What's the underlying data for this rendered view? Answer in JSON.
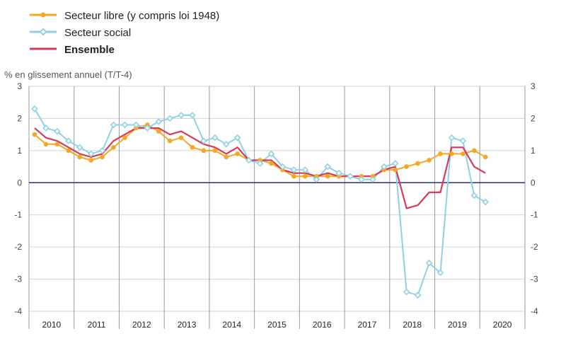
{
  "chart_data": {
    "type": "line",
    "ylabel": "% en glissement annuel (T/T-4)",
    "ylim": [
      -4,
      3
    ],
    "yticks": [
      3,
      2,
      1,
      0,
      -1,
      -2,
      -3,
      -4
    ],
    "years": [
      "2010",
      "2011",
      "2012",
      "2013",
      "2014",
      "2015",
      "2016",
      "2017",
      "2018",
      "2019",
      "2020"
    ],
    "x": [
      "2010T1",
      "2010T2",
      "2010T3",
      "2010T4",
      "2011T1",
      "2011T2",
      "2011T3",
      "2011T4",
      "2012T1",
      "2012T2",
      "2012T3",
      "2012T4",
      "2013T1",
      "2013T2",
      "2013T3",
      "2013T4",
      "2014T1",
      "2014T2",
      "2014T3",
      "2014T4",
      "2015T1",
      "2015T2",
      "2015T3",
      "2015T4",
      "2016T1",
      "2016T2",
      "2016T3",
      "2016T4",
      "2017T1",
      "2017T2",
      "2017T3",
      "2017T4",
      "2018T1",
      "2018T2",
      "2018T3",
      "2018T4",
      "2019T1",
      "2019T2",
      "2019T3",
      "2019T4",
      "2020T1"
    ],
    "grid": true,
    "legend_position": "top-left",
    "series": [
      {
        "name": "Secteur libre (y compris loi 1948)",
        "color": "#f5a623",
        "marker": "circle",
        "values": [
          1.5,
          1.2,
          1.2,
          1.0,
          0.8,
          0.7,
          0.8,
          1.1,
          1.4,
          1.7,
          1.8,
          1.6,
          1.3,
          1.4,
          1.1,
          1.0,
          1.0,
          0.8,
          0.9,
          0.7,
          0.7,
          0.6,
          0.4,
          0.2,
          0.2,
          0.2,
          0.2,
          0.2,
          0.2,
          0.2,
          0.2,
          0.4,
          0.4,
          0.5,
          0.6,
          0.7,
          0.9,
          0.9,
          0.9,
          1.0,
          0.8
        ]
      },
      {
        "name": "Secteur social",
        "color": "#8fd1e4",
        "marker": "diamond",
        "values": [
          2.3,
          1.7,
          1.6,
          1.3,
          1.1,
          0.9,
          1.0,
          1.8,
          1.8,
          1.8,
          1.7,
          1.9,
          2.0,
          2.1,
          2.1,
          1.3,
          1.4,
          1.2,
          1.4,
          0.7,
          0.6,
          0.9,
          0.5,
          0.4,
          0.4,
          0.1,
          0.5,
          0.3,
          0.2,
          0.1,
          0.1,
          0.5,
          0.6,
          -3.4,
          -3.5,
          -2.5,
          -2.8,
          1.4,
          1.3,
          -0.4,
          -0.6
        ]
      },
      {
        "name": "Ensemble",
        "color": "#d6395b",
        "marker": "none",
        "values": [
          1.7,
          1.4,
          1.3,
          1.1,
          0.9,
          0.8,
          0.9,
          1.3,
          1.5,
          1.7,
          1.7,
          1.7,
          1.5,
          1.6,
          1.4,
          1.2,
          1.1,
          0.9,
          1.1,
          0.7,
          0.7,
          0.7,
          0.4,
          0.3,
          0.3,
          0.2,
          0.3,
          0.2,
          0.2,
          0.2,
          0.2,
          0.4,
          0.5,
          -0.8,
          -0.7,
          -0.3,
          -0.3,
          1.1,
          1.1,
          0.5,
          0.3
        ]
      }
    ],
    "zero_line_color": "#2a2a8c"
  }
}
